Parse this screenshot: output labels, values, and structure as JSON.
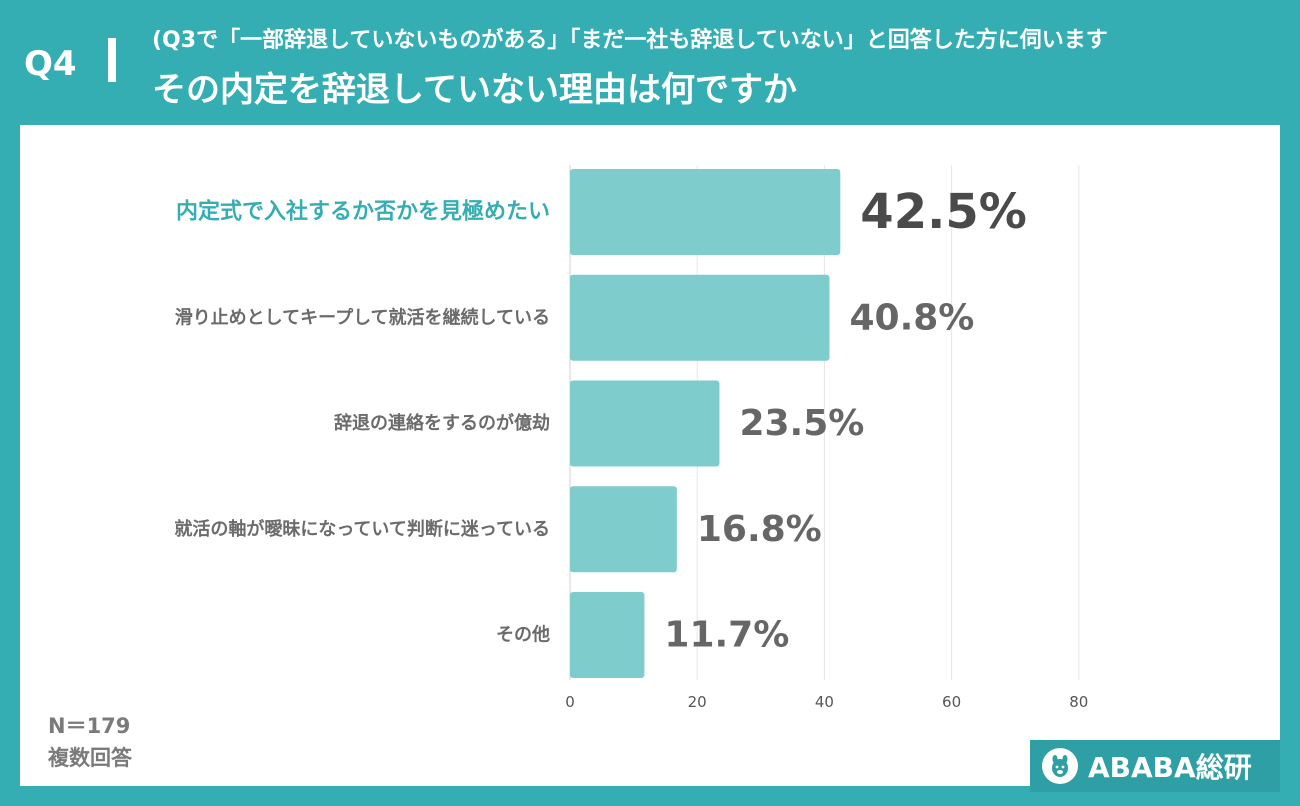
{
  "header": {
    "question_label": "Q4",
    "subtitle": "(Q3で「一部辞退していないものがある」「まだ一社も辞退していない」と回答した方に伺います",
    "title": "その内定を辞退していない理由は何ですか"
  },
  "notes": {
    "n_count": "N＝179",
    "answer_type": "複数回答"
  },
  "logo": {
    "text": "ABABA総研",
    "icon": "alpaca-icon"
  },
  "colors": {
    "frame": "#35aeb3",
    "bar": "#7ecccb",
    "highlight_label": "#35aeb3",
    "label": "#6b6b6b",
    "value": "#666666",
    "value_highlight": "#4a4a4a"
  },
  "chart_data": {
    "type": "bar",
    "orientation": "horizontal",
    "categories": [
      "内定式で入社するか否かを見極めたい",
      "滑り止めとしてキープして就活を継続している",
      "辞退の連絡をするのが億劫",
      "就活の軸が曖昧になっていて判断に迷っている",
      "その他"
    ],
    "values": [
      42.5,
      40.8,
      23.5,
      16.8,
      11.7
    ],
    "value_labels": [
      "42.5%",
      "40.8%",
      "23.5%",
      "16.8%",
      "11.7%"
    ],
    "highlight_index": 0,
    "xlim": [
      0,
      80
    ],
    "xticks": [
      "0",
      "20",
      "40",
      "60",
      "80"
    ],
    "grid": true,
    "legend": "none"
  }
}
